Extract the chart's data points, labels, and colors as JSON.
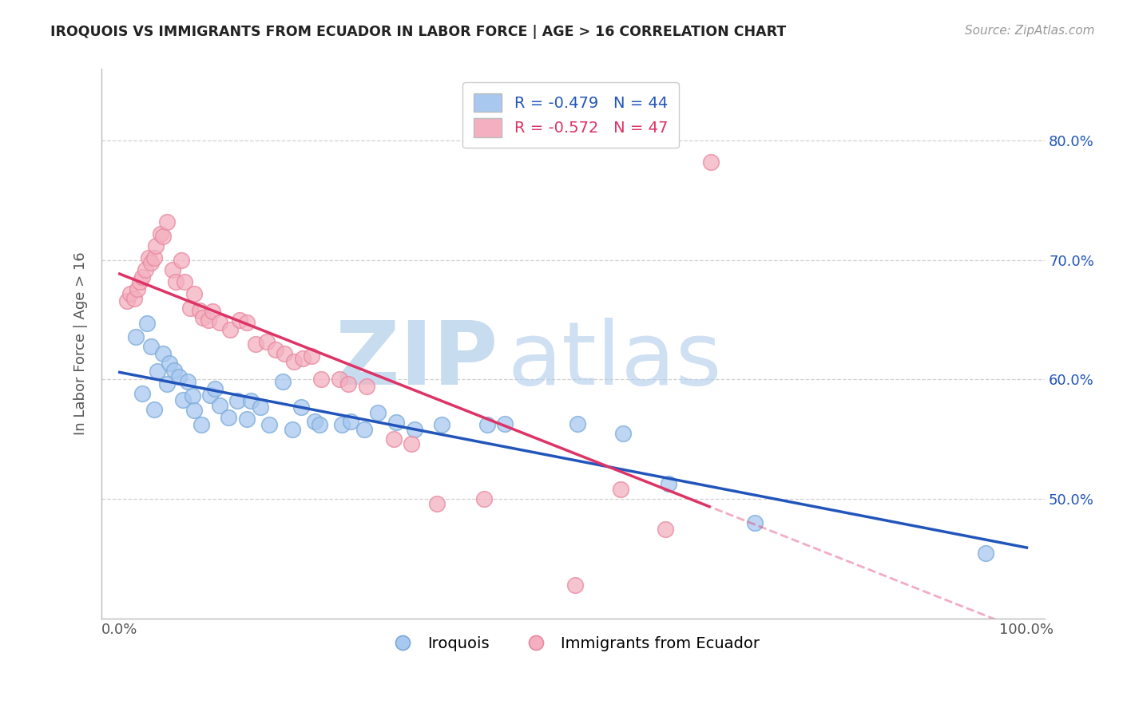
{
  "title": "IROQUOIS VS IMMIGRANTS FROM ECUADOR IN LABOR FORCE | AGE > 16 CORRELATION CHART",
  "source": "Source: ZipAtlas.com",
  "ylabel": "In Labor Force | Age > 16",
  "blue_R": -0.479,
  "blue_N": 44,
  "pink_R": -0.572,
  "pink_N": 47,
  "blue_fill": "#a8c8f0",
  "blue_edge": "#7aaad8",
  "pink_fill": "#f4b0c0",
  "pink_edge": "#e888a0",
  "blue_line": "#2255bb",
  "pink_line": "#dd3366",
  "blue_label_color": "#2255bb",
  "pink_label_color": "#dd3366",
  "watermark_zip_color": "#c8dcf0",
  "watermark_atlas_color": "#b0ccec",
  "title_color": "#222222",
  "source_color": "#999999",
  "ylabel_color": "#555555",
  "grid_color": "#cccccc",
  "tick_color": "#2255bb",
  "bg_color": "#ffffff",
  "blue_x": [
    0.018,
    0.025,
    0.03,
    0.035,
    0.038,
    0.042,
    0.048,
    0.052,
    0.055,
    0.06,
    0.065,
    0.07,
    0.075,
    0.08,
    0.082,
    0.09,
    0.1,
    0.105,
    0.11,
    0.12,
    0.13,
    0.14,
    0.145,
    0.155,
    0.165,
    0.18,
    0.19,
    0.2,
    0.215,
    0.22,
    0.245,
    0.255,
    0.27,
    0.285,
    0.305,
    0.325,
    0.355,
    0.405,
    0.425,
    0.505,
    0.555,
    0.605,
    0.7,
    0.955
  ],
  "blue_y": [
    0.636,
    0.588,
    0.647,
    0.628,
    0.575,
    0.607,
    0.622,
    0.596,
    0.614,
    0.608,
    0.602,
    0.583,
    0.598,
    0.586,
    0.574,
    0.562,
    0.587,
    0.592,
    0.578,
    0.568,
    0.582,
    0.567,
    0.582,
    0.577,
    0.562,
    0.598,
    0.558,
    0.577,
    0.565,
    0.562,
    0.562,
    0.565,
    0.558,
    0.572,
    0.564,
    0.558,
    0.562,
    0.562,
    0.563,
    0.563,
    0.555,
    0.513,
    0.48,
    0.455
  ],
  "pink_x": [
    0.008,
    0.012,
    0.016,
    0.02,
    0.022,
    0.025,
    0.028,
    0.032,
    0.035,
    0.038,
    0.04,
    0.045,
    0.048,
    0.052,
    0.058,
    0.062,
    0.068,
    0.072,
    0.078,
    0.082,
    0.088,
    0.092,
    0.098,
    0.102,
    0.11,
    0.122,
    0.132,
    0.14,
    0.15,
    0.162,
    0.172,
    0.182,
    0.192,
    0.202,
    0.212,
    0.222,
    0.242,
    0.252,
    0.272,
    0.302,
    0.322,
    0.35,
    0.402,
    0.552,
    0.602,
    0.652,
    0.502
  ],
  "pink_y": [
    0.666,
    0.672,
    0.668,
    0.676,
    0.682,
    0.686,
    0.692,
    0.702,
    0.698,
    0.702,
    0.712,
    0.722,
    0.72,
    0.732,
    0.692,
    0.682,
    0.7,
    0.682,
    0.66,
    0.672,
    0.658,
    0.652,
    0.65,
    0.657,
    0.648,
    0.642,
    0.65,
    0.648,
    0.63,
    0.632,
    0.625,
    0.622,
    0.615,
    0.618,
    0.62,
    0.6,
    0.6,
    0.596,
    0.594,
    0.55,
    0.546,
    0.496,
    0.5,
    0.508,
    0.475,
    0.782,
    0.428
  ]
}
